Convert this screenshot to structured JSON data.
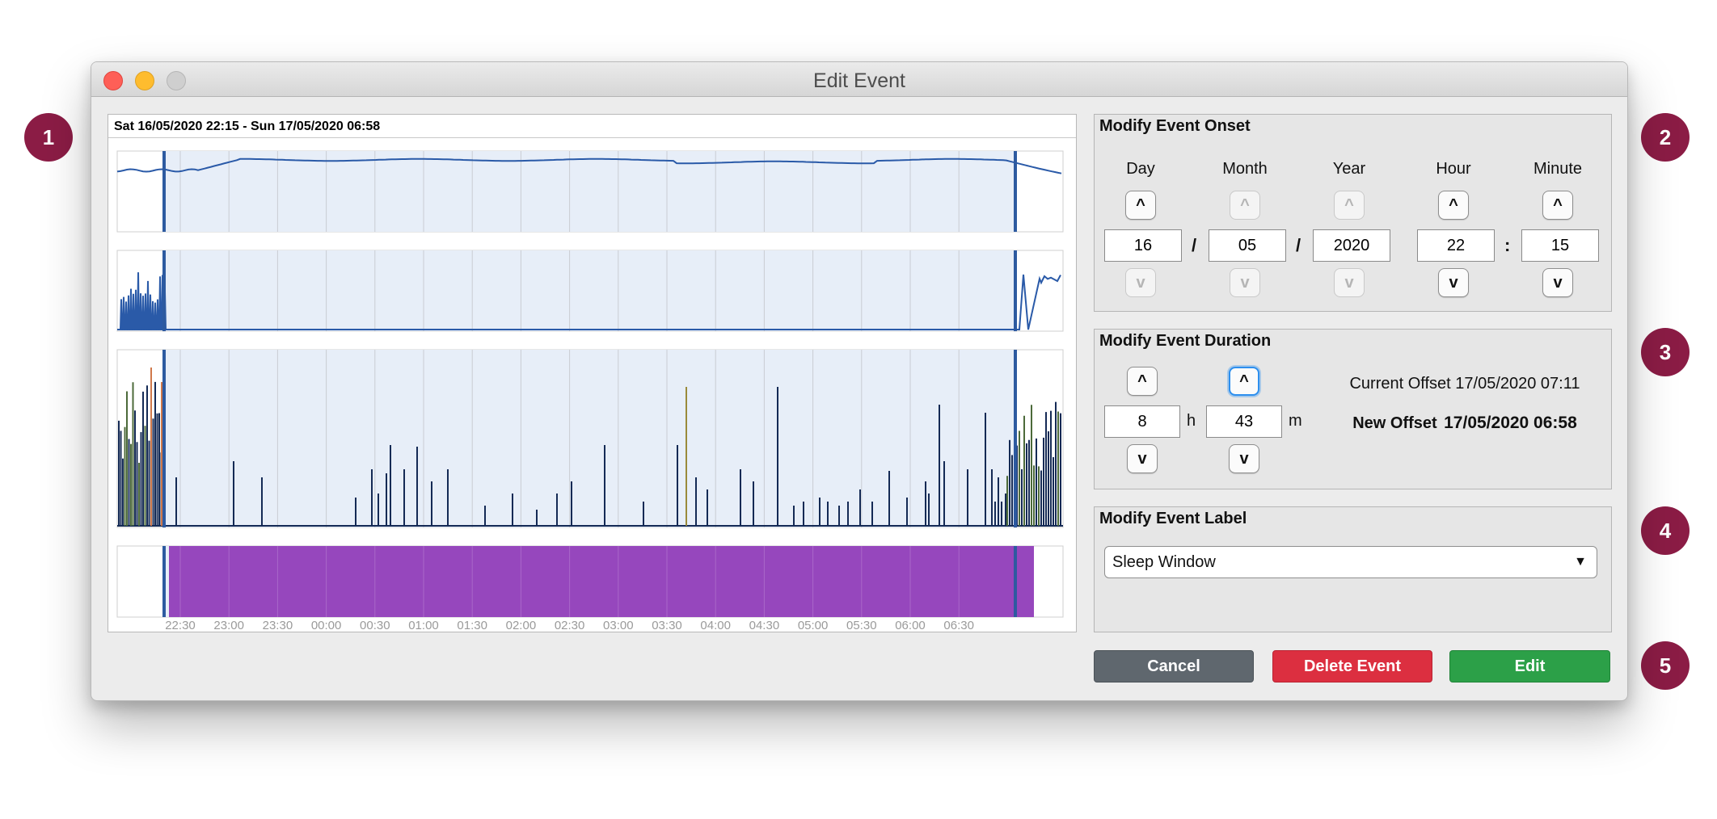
{
  "callouts": [
    "1",
    "2",
    "3",
    "4",
    "5"
  ],
  "window": {
    "title": "Edit Event"
  },
  "chart": {
    "header": "Sat 16/05/2020 22:15 - Sun 17/05/2020 06:58",
    "time_ticks": [
      "22:30",
      "23:00",
      "23:30",
      "00:00",
      "00:30",
      "01:00",
      "01:30",
      "02:00",
      "02:30",
      "03:00",
      "03:30",
      "04:00",
      "04:30",
      "05:00",
      "05:30",
      "06:00",
      "06:30"
    ],
    "colors": {
      "line": "#2a5aa8",
      "fill": "#e7eef8",
      "activity": "#142a55",
      "event": "#9647bd"
    }
  },
  "onset": {
    "title": "Modify Event Onset",
    "labels": {
      "day": "Day",
      "month": "Month",
      "year": "Year",
      "hour": "Hour",
      "minute": "Minute"
    },
    "values": {
      "day": "16",
      "month": "05",
      "year": "2020",
      "hour": "22",
      "minute": "15"
    },
    "sep_slash": "/",
    "sep_colon": ":",
    "up": "^",
    "down": "v"
  },
  "duration": {
    "title": "Modify Event Duration",
    "hours": "8",
    "minutes": "43",
    "unit_h": "h",
    "unit_m": "m",
    "current_offset_label": "Current Offset",
    "current_offset_value": "17/05/2020 07:11",
    "new_offset_label": "New Offset",
    "new_offset_value": "17/05/2020 06:58"
  },
  "label": {
    "title": "Modify Event Label",
    "selected": "Sleep Window"
  },
  "buttons": {
    "cancel": "Cancel",
    "delete": "Delete Event",
    "edit": "Edit"
  }
}
